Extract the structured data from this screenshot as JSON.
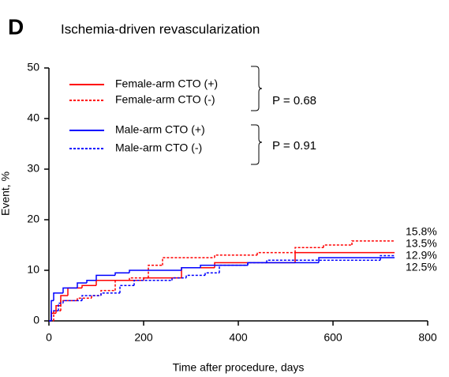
{
  "chart_data": {
    "type": "step",
    "panel_label": "D",
    "title": "Ischemia-driven revascularization",
    "x_label": "Time after procedure, days",
    "y_label": "Event, %",
    "xlim": [
      0,
      800
    ],
    "xticks": [
      0,
      200,
      400,
      600,
      800
    ],
    "ylim": [
      0,
      50
    ],
    "yticks": [
      0,
      10,
      20,
      30,
      40,
      50
    ],
    "grid": false,
    "legend_position": "upper left",
    "p_values": [
      "P = 0.68",
      "P = 0.91"
    ],
    "series": [
      {
        "name": "Female-arm CTO (+)",
        "color": "#ff0000",
        "dash": false,
        "x": [
          0,
          5,
          15,
          25,
          40,
          70,
          100,
          150,
          200,
          270,
          280,
          350,
          520,
          730
        ],
        "values": [
          0,
          1.5,
          3,
          5,
          6.5,
          7,
          8,
          8,
          8.5,
          8.5,
          10.5,
          11.5,
          13.5,
          13.5
        ],
        "end_label": {
          "value": 13.5,
          "label": "13.5%"
        }
      },
      {
        "name": "Female-arm CTO (-)",
        "color": "#ff0000",
        "dash": true,
        "x": [
          0,
          10,
          25,
          60,
          90,
          110,
          140,
          170,
          210,
          240,
          350,
          440,
          520,
          580,
          640,
          730
        ],
        "values": [
          0,
          2,
          4,
          4.5,
          5,
          6,
          8,
          8.5,
          11,
          12.5,
          13,
          13.5,
          14.5,
          15,
          15.8,
          15.8
        ],
        "end_label": {
          "value": 15.8,
          "label": "15.8%"
        }
      },
      {
        "name": "Male-arm CTO (+)",
        "color": "#0000ff",
        "dash": false,
        "x": [
          0,
          5,
          10,
          30,
          60,
          80,
          100,
          140,
          170,
          280,
          320,
          420,
          570,
          730
        ],
        "values": [
          0,
          4,
          5.5,
          6.5,
          7.5,
          8,
          9,
          9.5,
          10,
          10.5,
          11,
          11.5,
          12.5,
          12.5
        ],
        "end_label": {
          "value": 12.5,
          "label": "12.5%"
        }
      },
      {
        "name": "Male-arm CTO (-)",
        "color": "#0000ff",
        "dash": true,
        "x": [
          0,
          5,
          20,
          30,
          70,
          110,
          150,
          180,
          260,
          290,
          330,
          360,
          420,
          460,
          700,
          730
        ],
        "values": [
          0,
          2,
          3.5,
          4,
          5,
          5.5,
          7,
          8,
          8.5,
          9,
          9.5,
          11,
          11.5,
          12,
          12.9,
          12.9
        ],
        "end_label": {
          "value": 12.9,
          "label": "12.9%"
        }
      }
    ]
  }
}
